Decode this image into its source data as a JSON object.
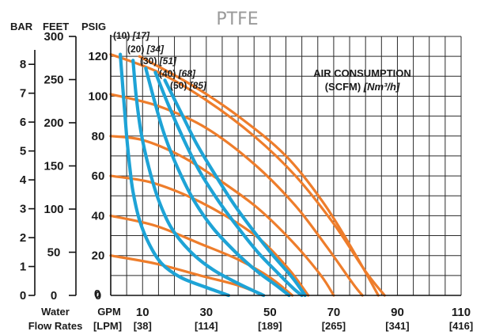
{
  "chart_data": {
    "type": "line",
    "title": "PTFE",
    "x_axis": {
      "label_lines": [
        "Water",
        "Flow Rates"
      ],
      "unit_primary": "GPM",
      "unit_secondary": "[LPM]",
      "range": [
        0,
        110
      ],
      "ticks": [
        {
          "value": 10,
          "label": "10",
          "alt": "[38]"
        },
        {
          "value": 30,
          "label": "30",
          "alt": "[114]"
        },
        {
          "value": 50,
          "label": "50",
          "alt": "[189]"
        },
        {
          "value": 70,
          "label": "70",
          "alt": "[265]"
        },
        {
          "value": 90,
          "label": "90",
          "alt": "[341]"
        },
        {
          "value": 110,
          "label": "110",
          "alt": "[416]"
        }
      ],
      "origin_label": "0"
    },
    "y_axis": {
      "range": [
        0,
        130
      ],
      "psig": {
        "label": "PSIG",
        "ticks": [
          0,
          20,
          40,
          60,
          80,
          100,
          120
        ]
      },
      "feet": {
        "label": "FEET",
        "ticks": [
          0,
          50,
          100,
          150,
          200,
          250,
          300
        ]
      },
      "bar": {
        "label": "BAR",
        "ticks": [
          0,
          1,
          2,
          3,
          4,
          5,
          6,
          7,
          8
        ]
      }
    },
    "grid": true,
    "legend": {
      "title": "AIR CONSUMPTION",
      "subtitle_plain": "(SCFM) ",
      "subtitle_italic": "[Nm³/h]",
      "position": "top-right"
    },
    "air_consumption_series": [
      {
        "label_plain": "(10) ",
        "label_italic": "[17]",
        "points": [
          [
            3,
            121
          ],
          [
            4,
            100
          ],
          [
            5,
            80
          ],
          [
            6,
            64
          ],
          [
            7,
            52
          ],
          [
            9,
            38
          ],
          [
            12,
            26
          ],
          [
            16,
            16
          ],
          [
            22,
            9
          ],
          [
            30,
            4
          ],
          [
            37,
            0
          ]
        ]
      },
      {
        "label_plain": "(20) ",
        "label_italic": "[34]",
        "points": [
          [
            7,
            118
          ],
          [
            8,
            100
          ],
          [
            9.5,
            82
          ],
          [
            12,
            64
          ],
          [
            15,
            48
          ],
          [
            19,
            34
          ],
          [
            25,
            22
          ],
          [
            32,
            13
          ],
          [
            40,
            6
          ],
          [
            48,
            0
          ]
        ]
      },
      {
        "label_plain": "(30) ",
        "label_italic": "[51]",
        "points": [
          [
            11,
            114
          ],
          [
            14,
            96
          ],
          [
            17,
            80
          ],
          [
            21,
            64
          ],
          [
            26,
            48
          ],
          [
            32,
            34
          ],
          [
            39,
            22
          ],
          [
            46,
            12
          ],
          [
            52,
            5
          ],
          [
            56,
            0
          ]
        ]
      },
      {
        "label_plain": "(40) ",
        "label_italic": "[68]",
        "points": [
          [
            14,
            112
          ],
          [
            18,
            96
          ],
          [
            23,
            78
          ],
          [
            28,
            62
          ],
          [
            34,
            47
          ],
          [
            40,
            34
          ],
          [
            46,
            22
          ],
          [
            52,
            12
          ],
          [
            57,
            4
          ],
          [
            60,
            0
          ]
        ]
      },
      {
        "label_plain": "(50) ",
        "label_italic": "[85]",
        "points": [
          [
            17,
            108
          ],
          [
            22,
            92
          ],
          [
            27,
            76
          ],
          [
            33,
            60
          ],
          [
            39,
            45
          ],
          [
            45,
            32
          ],
          [
            51,
            20
          ],
          [
            57,
            9
          ],
          [
            61,
            0
          ]
        ]
      }
    ],
    "head_capacity_curves": [
      {
        "points": [
          [
            0,
            121
          ],
          [
            15,
            112
          ],
          [
            30,
            98
          ],
          [
            45,
            80
          ],
          [
            58,
            60
          ],
          [
            70,
            36
          ],
          [
            80,
            12
          ],
          [
            86,
            0
          ]
        ]
      },
      {
        "points": [
          [
            9,
            120
          ],
          [
            25,
            106
          ],
          [
            40,
            90
          ],
          [
            55,
            70
          ],
          [
            67,
            46
          ],
          [
            77,
            20
          ],
          [
            84,
            0
          ]
        ]
      },
      {
        "points": [
          [
            0,
            101
          ],
          [
            15,
            95
          ],
          [
            30,
            84
          ],
          [
            45,
            66
          ],
          [
            58,
            45
          ],
          [
            68,
            24
          ],
          [
            76,
            6
          ],
          [
            79,
            0
          ]
        ]
      },
      {
        "points": [
          [
            0,
            80
          ],
          [
            10,
            78
          ],
          [
            22,
            70
          ],
          [
            34,
            58
          ],
          [
            46,
            44
          ],
          [
            57,
            27
          ],
          [
            66,
            10
          ],
          [
            70,
            0
          ]
        ]
      },
      {
        "points": [
          [
            0,
            60
          ],
          [
            12,
            57
          ],
          [
            24,
            50
          ],
          [
            36,
            40
          ],
          [
            47,
            28
          ],
          [
            56,
            13
          ],
          [
            62,
            0
          ]
        ]
      },
      {
        "points": [
          [
            0,
            40
          ],
          [
            14,
            35
          ],
          [
            28,
            26
          ],
          [
            40,
            18
          ],
          [
            50,
            9
          ],
          [
            57,
            0
          ]
        ]
      },
      {
        "points": [
          [
            0,
            20
          ],
          [
            14,
            16
          ],
          [
            28,
            10
          ],
          [
            40,
            5
          ],
          [
            48,
            0
          ]
        ]
      }
    ],
    "colors": {
      "air_curves": "#1ea3d6",
      "head_curves": "#ee7d2b"
    }
  }
}
